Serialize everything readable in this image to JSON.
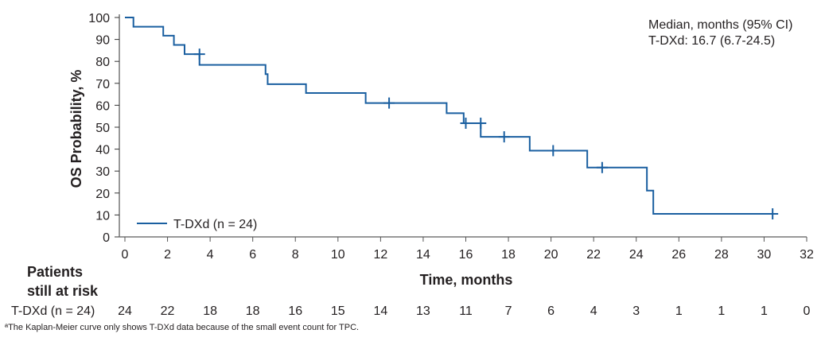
{
  "chart_data": {
    "type": "line",
    "subtype": "kaplan-meier step",
    "xlabel": "Time, months",
    "ylabel": "OS Probability, %",
    "xlim": [
      0,
      32
    ],
    "ylim": [
      0,
      100
    ],
    "x_ticks": [
      0,
      2,
      4,
      6,
      8,
      10,
      12,
      14,
      16,
      18,
      20,
      22,
      24,
      26,
      28,
      30,
      32
    ],
    "y_ticks": [
      0,
      10,
      20,
      30,
      40,
      50,
      60,
      70,
      80,
      90,
      100
    ],
    "grid": false,
    "legend_position": "bottom-left",
    "color": "#1a5fa0",
    "series": [
      {
        "name": "T-DXd (n = 24)",
        "steps": [
          [
            0,
            100
          ],
          [
            0.4,
            95.8
          ],
          [
            1.8,
            91.7
          ],
          [
            2.3,
            87.5
          ],
          [
            2.8,
            83.3
          ],
          [
            3.5,
            78.4
          ],
          [
            6.6,
            74.2
          ],
          [
            6.7,
            69.6
          ],
          [
            8.5,
            65.6
          ],
          [
            11.3,
            61.0
          ],
          [
            15.1,
            56.4
          ],
          [
            15.9,
            51.8
          ],
          [
            16.7,
            45.6
          ],
          [
            19.0,
            39.3
          ],
          [
            21.7,
            31.6
          ],
          [
            24.5,
            21.1
          ],
          [
            24.8,
            10.5
          ],
          [
            30.6,
            10.5
          ]
        ],
        "censored": [
          [
            3.5,
            83.3
          ],
          [
            12.4,
            61.0
          ],
          [
            16.0,
            51.8
          ],
          [
            16.7,
            51.8
          ],
          [
            17.8,
            45.6
          ],
          [
            20.1,
            39.3
          ],
          [
            22.4,
            31.6
          ],
          [
            30.4,
            10.5
          ]
        ]
      }
    ],
    "annotation": [
      "Median, months (95% CI)",
      "T-DXd: 16.7 (6.7-24.5)"
    ],
    "risk_table": {
      "title": [
        "Patients",
        "still at risk"
      ],
      "row_label": "T-DXd (n = 24)",
      "values": [
        24,
        22,
        18,
        18,
        16,
        15,
        14,
        13,
        11,
        7,
        6,
        4,
        3,
        1,
        1,
        1,
        0
      ]
    }
  },
  "footnote": "ªThe Kaplan-Meier curve only shows T-DXd data because of the small event count for TPC."
}
